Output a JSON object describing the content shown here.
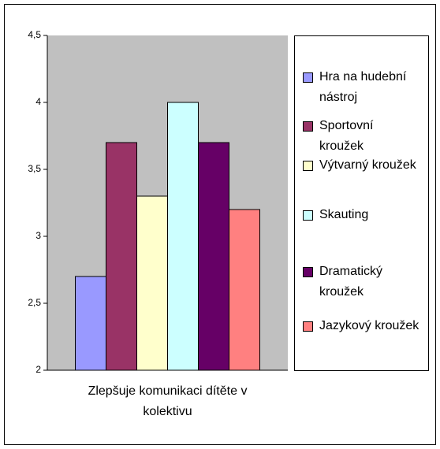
{
  "chart_data": {
    "type": "bar",
    "categories": [
      "Zlepšuje komunikaci dítěte v kolektivu"
    ],
    "series": [
      {
        "name": "Hra na hudební nástroj",
        "color": "#9999ff",
        "values": [
          2.7
        ]
      },
      {
        "name": "Sportovní kroužek",
        "color": "#993366",
        "values": [
          3.7
        ]
      },
      {
        "name": "Výtvarný kroužek",
        "color": "#ffffcc",
        "values": [
          3.3
        ]
      },
      {
        "name": "Skauting",
        "color": "#ccffff",
        "values": [
          4.0
        ]
      },
      {
        "name": "Dramatický kroužek",
        "color": "#660066",
        "values": [
          3.7
        ]
      },
      {
        "name": "Jazykový kroužek",
        "color": "#ff8080",
        "values": [
          3.2
        ]
      }
    ],
    "ylim": [
      2,
      4.5
    ],
    "yticks": [
      2,
      {
        "value": 2.5,
        "label": "2,5"
      },
      3,
      {
        "value": 3.5,
        "label": "3,5"
      },
      4,
      {
        "value": 4.5,
        "label": "4,5"
      }
    ],
    "legend": "right"
  }
}
